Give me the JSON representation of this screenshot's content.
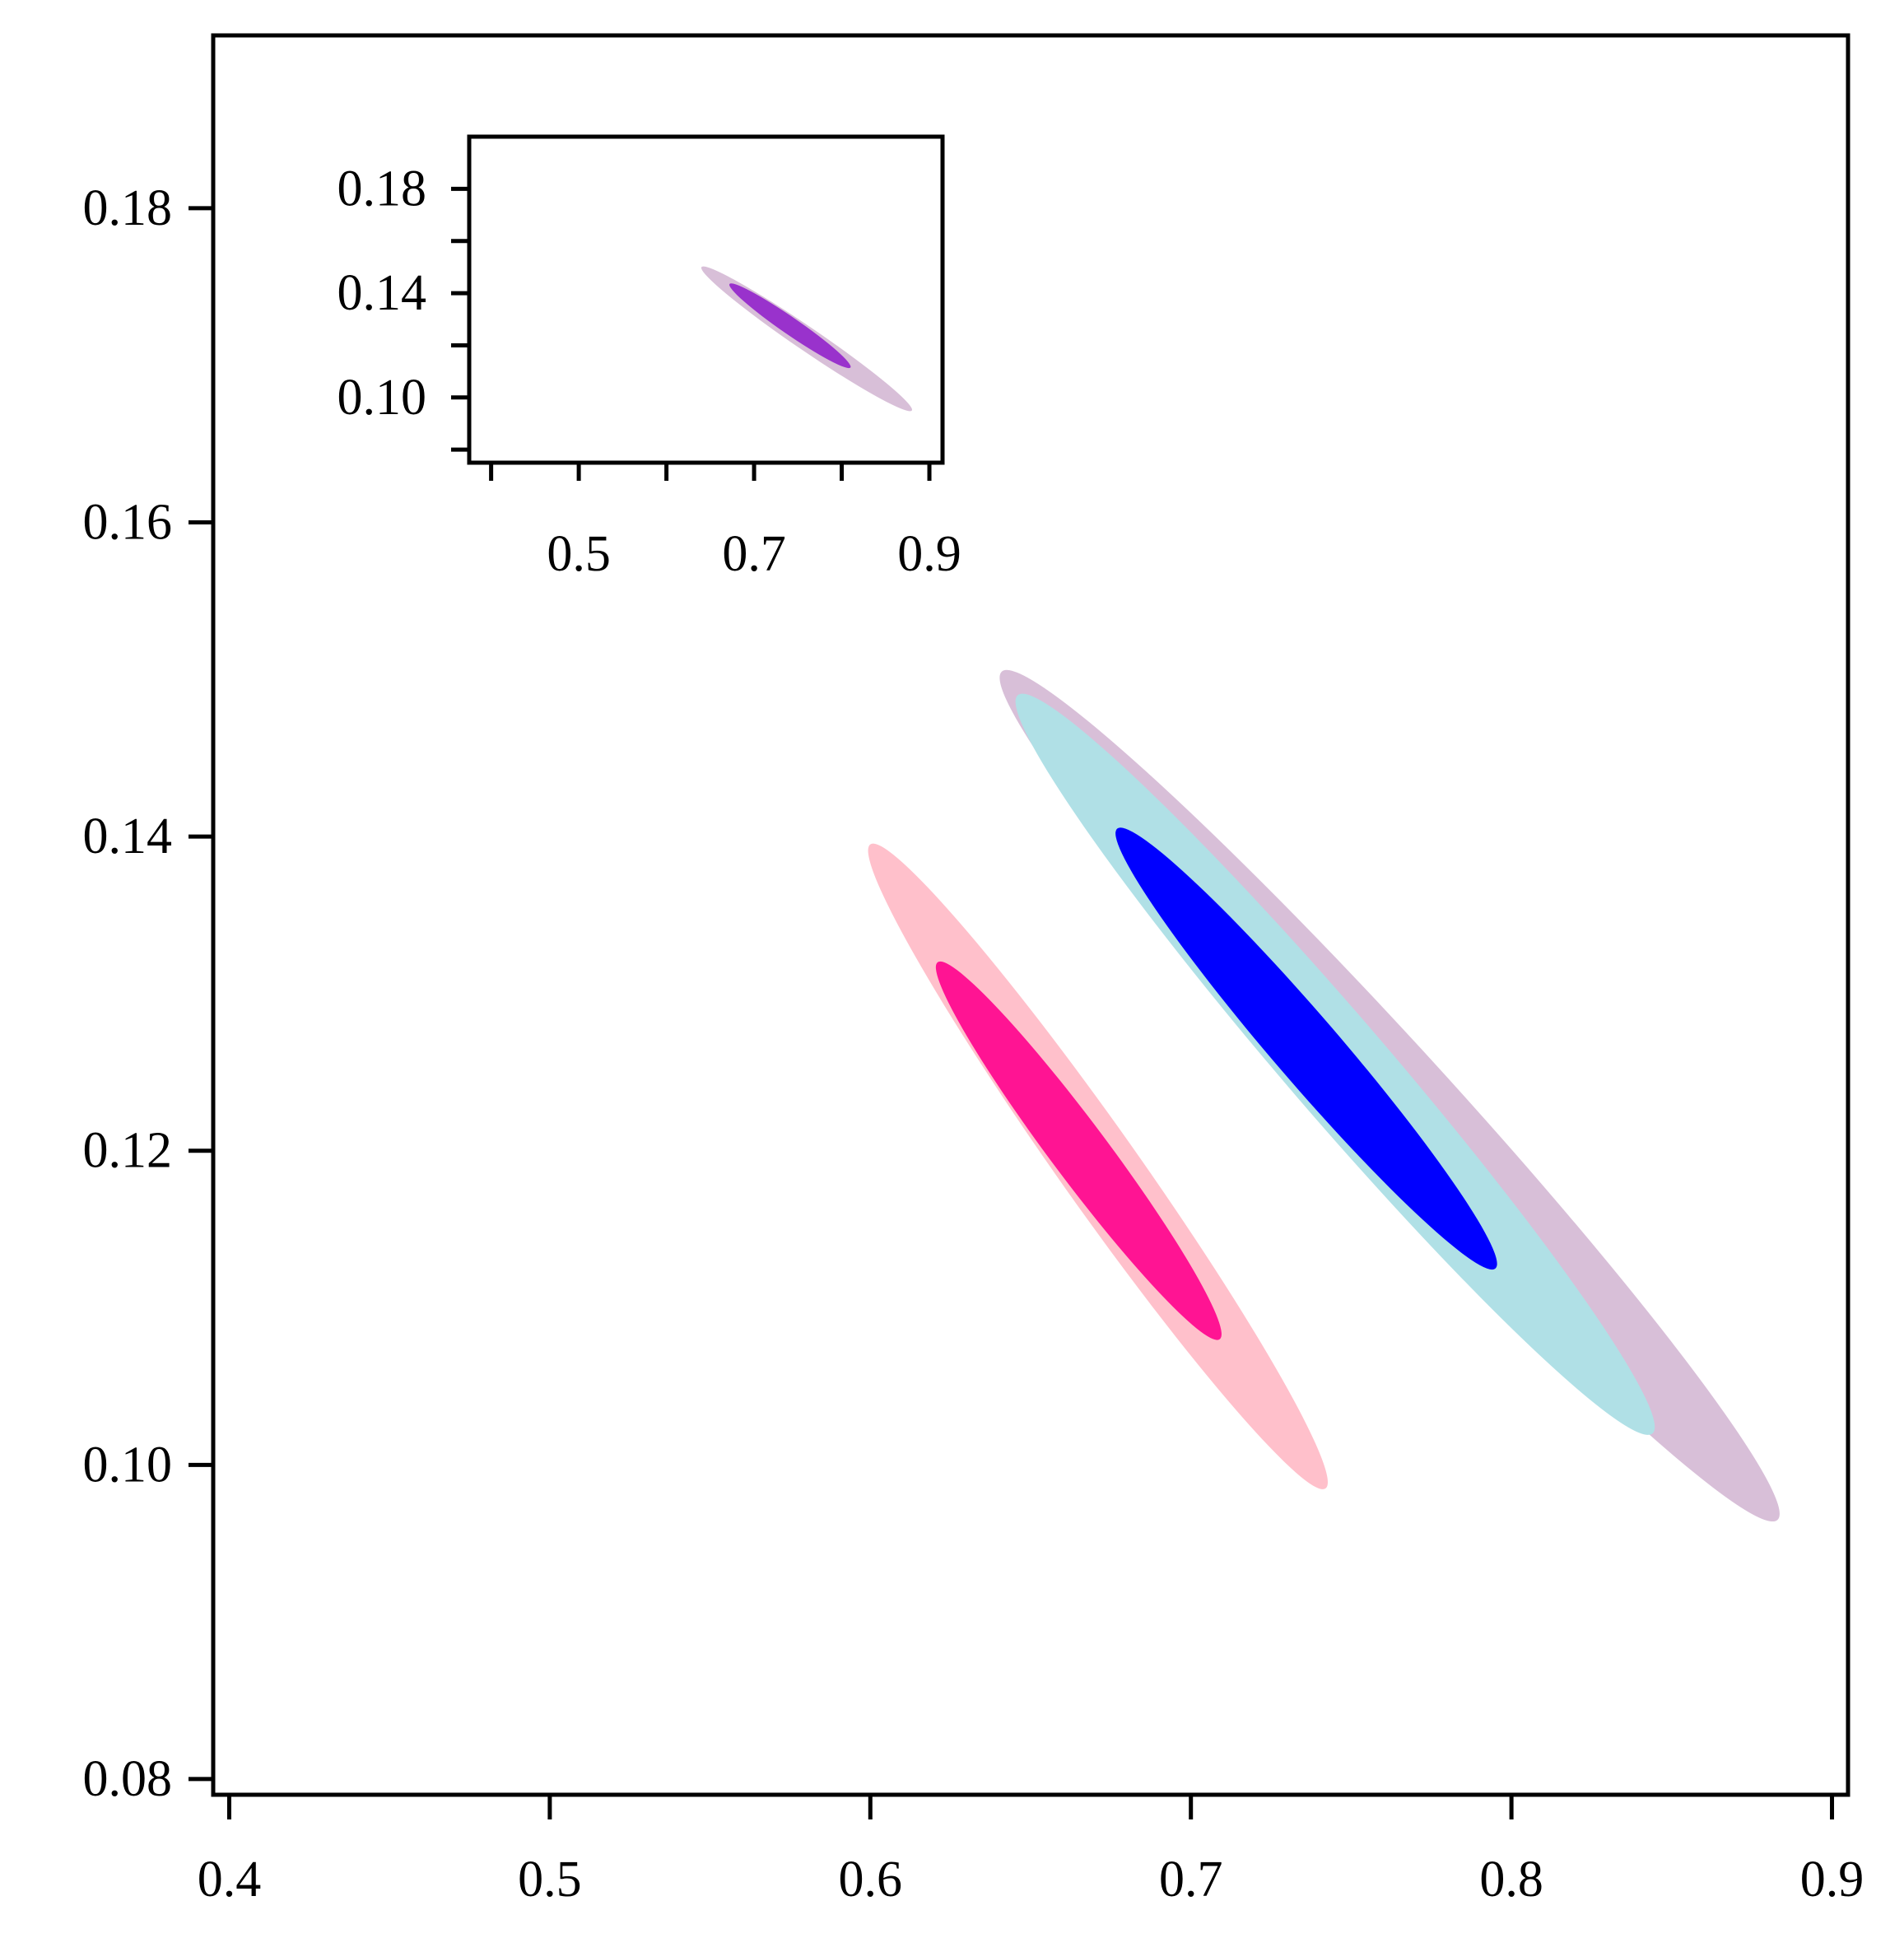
{
  "chart_data": [
    {
      "type": "contour",
      "role": "main",
      "xlim": [
        0.395,
        0.905
      ],
      "ylim": [
        0.079,
        0.191
      ],
      "xticks": [
        0.4,
        0.5,
        0.6,
        0.7,
        0.8,
        0.9
      ],
      "xtick_labels": [
        "0.4",
        "0.5",
        "0.6",
        "0.7",
        "0.8",
        "0.9"
      ],
      "yticks": [
        0.08,
        0.1,
        0.12,
        0.14,
        0.16,
        0.18
      ],
      "ytick_labels": [
        "0.08",
        "0.10",
        "0.12",
        "0.14",
        "0.16",
        "0.18"
      ],
      "xlabel": "",
      "ylabel": "",
      "title": "",
      "grid": false,
      "legend": "none",
      "series": [
        {
          "color": "#D8BFD8",
          "level": "outer",
          "center": [
            0.762,
            0.1235
          ],
          "endpoint_a": [
            0.641,
            0.1505
          ],
          "endpoint_b": [
            0.883,
            0.0965
          ],
          "half_width": 0.0035
        },
        {
          "color": "#B0E0E6",
          "level": "outer",
          "center": [
            0.745,
            0.1255
          ],
          "endpoint_a": [
            0.646,
            0.149
          ],
          "endpoint_b": [
            0.844,
            0.102
          ],
          "half_width": 0.0032
        },
        {
          "color": "#0000FF",
          "level": "inner",
          "center": [
            0.736,
            0.1265
          ],
          "endpoint_a": [
            0.677,
            0.1405
          ],
          "endpoint_b": [
            0.795,
            0.1125
          ],
          "half_width": 0.0021
        },
        {
          "color": "#FFC0CB",
          "level": "outer",
          "center": [
            0.671,
            0.119
          ],
          "endpoint_a": [
            0.6,
            0.1395
          ],
          "endpoint_b": [
            0.742,
            0.0985
          ],
          "half_width": 0.0025
        },
        {
          "color": "#FF1493",
          "level": "inner",
          "center": [
            0.665,
            0.12
          ],
          "endpoint_a": [
            0.621,
            0.132
          ],
          "endpoint_b": [
            0.709,
            0.108
          ],
          "half_width": 0.0018
        }
      ]
    },
    {
      "type": "contour",
      "role": "inset",
      "xlim": [
        0.375,
        0.915
      ],
      "ylim": [
        0.075,
        0.2
      ],
      "xticks": [
        0.4,
        0.5,
        0.6,
        0.7,
        0.8,
        0.9
      ],
      "xtick_labels": [
        "",
        "0.5",
        "",
        "0.7",
        "",
        "0.9"
      ],
      "yticks": [
        0.08,
        0.1,
        0.12,
        0.14,
        0.16,
        0.18
      ],
      "ytick_labels": [
        "",
        "0.10",
        "",
        "0.14",
        "",
        "0.18"
      ],
      "xlabel": "",
      "ylabel": "",
      "title": "",
      "grid": false,
      "legend": "none",
      "series": [
        {
          "color": "#D8BFD8",
          "level": "outer",
          "center": [
            0.762,
            0.128
          ],
          "endpoint_a": [
            0.64,
            0.15
          ],
          "endpoint_b": [
            0.88,
            0.095
          ],
          "half_width": 0.0045
        },
        {
          "color": "#9932CC",
          "level": "inner",
          "center": [
            0.741,
            0.1275
          ],
          "endpoint_a": [
            0.672,
            0.1435
          ],
          "endpoint_b": [
            0.81,
            0.1115
          ],
          "half_width": 0.0033
        }
      ]
    }
  ]
}
